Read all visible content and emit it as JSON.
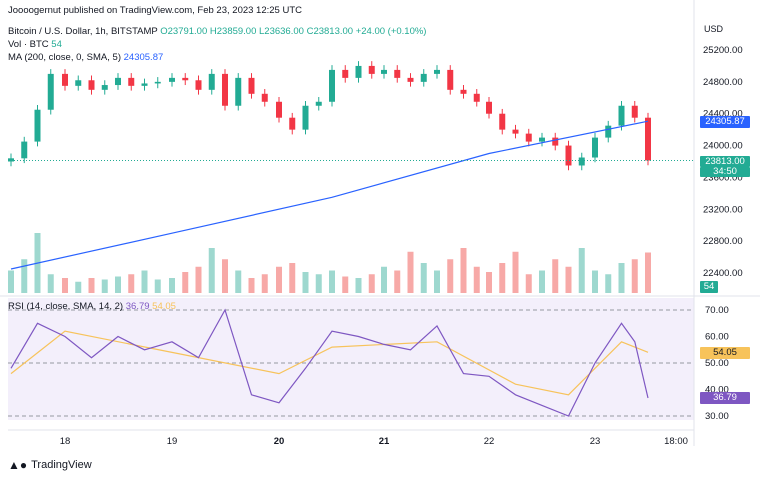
{
  "published_line": "Joooogernut published on TradingView.com, Feb 23, 2023 12:25 UTC",
  "header": {
    "symbol": "Bitcoin / U.S. Dollar, 1h, BITSTAMP",
    "open": "O23791.00",
    "high": "H23859.00",
    "low": "L23636.00",
    "close": "C23813.00",
    "change": "+24.00 (+0.10%)",
    "vol_label": "Vol · BTC",
    "vol_value": "54",
    "ma_label": "MA (200, close, 0, SMA, 5)",
    "ma_value": "24305.87",
    "rsi_label": "RSI (14, close, SMA, 14, 2)",
    "rsi_value": "36.79",
    "rsi_ma_value": "54.05"
  },
  "price_axis": {
    "currency": "USD",
    "ticks": [
      "25200.00",
      "24800.00",
      "24400.00",
      "24000.00",
      "23600.00",
      "23200.00",
      "22800.00",
      "22400.00"
    ],
    "ma_tag": "24305.87",
    "last_tag": "23813.00",
    "countdown": "34:50",
    "vol_tag": "54"
  },
  "rsi_axis": {
    "ticks": [
      "70.00",
      "60.00",
      "50.00",
      "40.00",
      "30.00"
    ],
    "rsi_ma_tag": "54.05",
    "rsi_tag": "36.79"
  },
  "time_axis": [
    "18",
    "19",
    "20",
    "21",
    "22",
    "23",
    "18:00"
  ],
  "footer": "TradingView",
  "colors": {
    "up": "#22ab94",
    "down": "#f23645",
    "ma": "#2962ff",
    "rsi": "#7e57c2",
    "rsi_ma": "#f7c35b"
  },
  "chart_data": {
    "type": "candlestick",
    "interval": "1h",
    "price_range": [
      22300,
      25300
    ],
    "rsi_range": [
      25,
      75
    ],
    "close_series": [
      {
        "t": "17 12:00",
        "c": 23840
      },
      {
        "t": "17 15:00",
        "c": 24050
      },
      {
        "t": "17 18:00",
        "c": 24450
      },
      {
        "t": "17 21:00",
        "c": 24900
      },
      {
        "t": "18 00:00",
        "c": 24750
      },
      {
        "t": "18 03:00",
        "c": 24820
      },
      {
        "t": "18 06:00",
        "c": 24700
      },
      {
        "t": "18 09:00",
        "c": 24760
      },
      {
        "t": "18 12:00",
        "c": 24850
      },
      {
        "t": "18 15:00",
        "c": 24750
      },
      {
        "t": "18 18:00",
        "c": 24780
      },
      {
        "t": "18 21:00",
        "c": 24800
      },
      {
        "t": "19 00:00",
        "c": 24850
      },
      {
        "t": "19 03:00",
        "c": 24820
      },
      {
        "t": "19 06:00",
        "c": 24700
      },
      {
        "t": "19 09:00",
        "c": 24900
      },
      {
        "t": "19 12:00",
        "c": 24500
      },
      {
        "t": "19 15:00",
        "c": 24850
      },
      {
        "t": "19 18:00",
        "c": 24650
      },
      {
        "t": "19 21:00",
        "c": 24550
      },
      {
        "t": "20 00:00",
        "c": 24350
      },
      {
        "t": "20 03:00",
        "c": 24200
      },
      {
        "t": "20 06:00",
        "c": 24500
      },
      {
        "t": "20 09:00",
        "c": 24550
      },
      {
        "t": "20 12:00",
        "c": 24950
      },
      {
        "t": "20 15:00",
        "c": 24850
      },
      {
        "t": "20 18:00",
        "c": 25000
      },
      {
        "t": "20 21:00",
        "c": 24900
      },
      {
        "t": "21 00:00",
        "c": 24950
      },
      {
        "t": "21 03:00",
        "c": 24850
      },
      {
        "t": "21 06:00",
        "c": 24800
      },
      {
        "t": "21 09:00",
        "c": 24900
      },
      {
        "t": "21 12:00",
        "c": 24950
      },
      {
        "t": "21 15:00",
        "c": 24700
      },
      {
        "t": "21 18:00",
        "c": 24650
      },
      {
        "t": "21 21:00",
        "c": 24550
      },
      {
        "t": "22 00:00",
        "c": 24400
      },
      {
        "t": "22 03:00",
        "c": 24200
      },
      {
        "t": "22 06:00",
        "c": 24150
      },
      {
        "t": "22 09:00",
        "c": 24050
      },
      {
        "t": "22 12:00",
        "c": 24100
      },
      {
        "t": "22 15:00",
        "c": 24000
      },
      {
        "t": "22 18:00",
        "c": 23750
      },
      {
        "t": "22 21:00",
        "c": 23850
      },
      {
        "t": "23 00:00",
        "c": 24100
      },
      {
        "t": "23 03:00",
        "c": 24250
      },
      {
        "t": "23 06:00",
        "c": 24500
      },
      {
        "t": "23 09:00",
        "c": 24350
      },
      {
        "t": "23 12:00",
        "c": 23813
      }
    ],
    "ma200_series": [
      {
        "t": "17 12:00",
        "v": 22450
      },
      {
        "t": "19 00:00",
        "v": 22900
      },
      {
        "t": "20 12:00",
        "v": 23350
      },
      {
        "t": "22 00:00",
        "v": 23900
      },
      {
        "t": "23 12:00",
        "v": 24306
      }
    ],
    "volume_series": [
      30,
      45,
      80,
      25,
      20,
      15,
      20,
      18,
      22,
      25,
      30,
      18,
      20,
      28,
      35,
      60,
      45,
      30,
      20,
      25,
      35,
      40,
      28,
      25,
      30,
      22,
      20,
      25,
      35,
      30,
      55,
      40,
      30,
      45,
      60,
      35,
      28,
      40,
      55,
      25,
      30,
      45,
      35,
      60,
      30,
      25,
      40,
      45,
      54
    ],
    "rsi_series": [
      {
        "t": "17 12:00",
        "v": 48
      },
      {
        "t": "17 18:00",
        "v": 65
      },
      {
        "t": "18 00:00",
        "v": 60
      },
      {
        "t": "18 06:00",
        "v": 52
      },
      {
        "t": "18 12:00",
        "v": 60
      },
      {
        "t": "18 18:00",
        "v": 55
      },
      {
        "t": "19 00:00",
        "v": 58
      },
      {
        "t": "19 06:00",
        "v": 52
      },
      {
        "t": "19 12:00",
        "v": 70
      },
      {
        "t": "19 18:00",
        "v": 38
      },
      {
        "t": "20 00:00",
        "v": 35
      },
      {
        "t": "20 06:00",
        "v": 48
      },
      {
        "t": "20 12:00",
        "v": 62
      },
      {
        "t": "20 18:00",
        "v": 60
      },
      {
        "t": "21 00:00",
        "v": 57
      },
      {
        "t": "21 06:00",
        "v": 55
      },
      {
        "t": "21 12:00",
        "v": 64
      },
      {
        "t": "21 18:00",
        "v": 46
      },
      {
        "t": "22 00:00",
        "v": 45
      },
      {
        "t": "22 06:00",
        "v": 38
      },
      {
        "t": "22 12:00",
        "v": 34
      },
      {
        "t": "22 18:00",
        "v": 30
      },
      {
        "t": "23 00:00",
        "v": 50
      },
      {
        "t": "23 06:00",
        "v": 65
      },
      {
        "t": "23 09:00",
        "v": 58
      },
      {
        "t": "23 12:00",
        "v": 36.79
      }
    ],
    "rsi_ma_series": [
      {
        "t": "17 12:00",
        "v": 46
      },
      {
        "t": "18 00:00",
        "v": 62
      },
      {
        "t": "19 00:00",
        "v": 54
      },
      {
        "t": "20 00:00",
        "v": 46
      },
      {
        "t": "20 12:00",
        "v": 56
      },
      {
        "t": "21 12:00",
        "v": 58
      },
      {
        "t": "22 06:00",
        "v": 42
      },
      {
        "t": "22 18:00",
        "v": 38
      },
      {
        "t": "23 06:00",
        "v": 58
      },
      {
        "t": "23 12:00",
        "v": 54.05
      }
    ]
  }
}
